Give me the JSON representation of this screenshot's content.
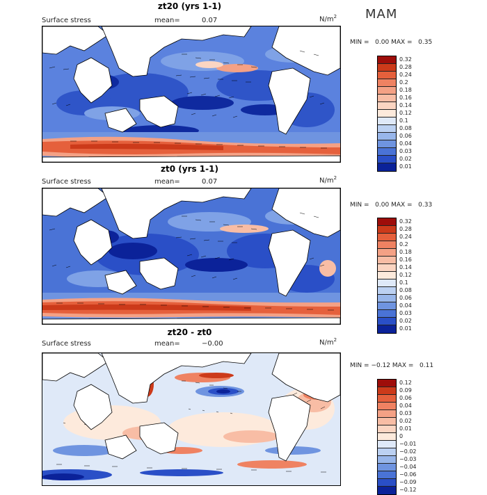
{
  "season": "MAM",
  "panels": [
    {
      "title": "zt20 (yrs 1-1)",
      "subtitle": "Surface stress",
      "mean_label": "mean=",
      "mean_value": "0.07",
      "units": "N/m",
      "units_exp": "2",
      "min_label": "MIN =",
      "min_value": "0.00",
      "max_label": "MAX =",
      "max_value": "0.35",
      "colorbar_labels": [
        "0.32",
        "0.28",
        "0.24",
        "0.2",
        "0.18",
        "0.16",
        "0.14",
        "0.12",
        "0.1",
        "0.08",
        "0.06",
        "0.04",
        "0.03",
        "0.02",
        "0.01"
      ],
      "colorbar_colors": [
        "#9e0d0a",
        "#cc3a1a",
        "#e5603c",
        "#ef8262",
        "#f4a185",
        "#f8bda5",
        "#fbd5c2",
        "#fdeadc",
        "#dfe9f8",
        "#bcd1f2",
        "#98b6ea",
        "#6f94e0",
        "#4a73d6",
        "#2a4fc7",
        "#0b2299"
      ]
    },
    {
      "title": "zt0 (yrs 1-1)",
      "subtitle": "Surface stress",
      "mean_label": "mean=",
      "mean_value": "0.07",
      "units": "N/m",
      "units_exp": "2",
      "min_label": "MIN =",
      "min_value": "0.00",
      "max_label": "MAX =",
      "max_value": "0.33",
      "colorbar_labels": [
        "0.32",
        "0.28",
        "0.24",
        "0.2",
        "0.18",
        "0.16",
        "0.14",
        "0.12",
        "0.1",
        "0.08",
        "0.06",
        "0.04",
        "0.03",
        "0.02",
        "0.01"
      ],
      "colorbar_colors": [
        "#9e0d0a",
        "#cc3a1a",
        "#e5603c",
        "#ef8262",
        "#f4a185",
        "#f8bda5",
        "#fbd5c2",
        "#fdeadc",
        "#dfe9f8",
        "#bcd1f2",
        "#98b6ea",
        "#6f94e0",
        "#4a73d6",
        "#2a4fc7",
        "#0b2299"
      ]
    },
    {
      "title": "zt20 - zt0",
      "subtitle": "Surface stress",
      "mean_label": "mean=",
      "mean_value": "−0.00",
      "units": "N/m",
      "units_exp": "2",
      "min_label": "MIN =",
      "min_value": "−0.12",
      "max_label": "MAX =",
      "max_value": "0.11",
      "colorbar_labels": [
        "0.12",
        "0.09",
        "0.06",
        "0.04",
        "0.03",
        "0.02",
        "0.01",
        "0",
        "−0.01",
        "−0.02",
        "−0.03",
        "−0.04",
        "−0.06",
        "−0.09",
        "−0.12"
      ],
      "colorbar_colors": [
        "#9e0d0a",
        "#cc3a1a",
        "#e5603c",
        "#ef8262",
        "#f4a185",
        "#f8bda5",
        "#fbd5c2",
        "#fdeadc",
        "#dfe9f8",
        "#bcd1f2",
        "#98b6ea",
        "#6f94e0",
        "#4a73d6",
        "#2a4fc7",
        "#0b2299"
      ]
    }
  ]
}
